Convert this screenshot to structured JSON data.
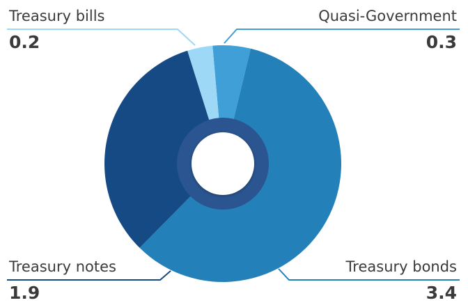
{
  "chart_data": {
    "type": "donut",
    "categories": [
      "Quasi-Government",
      "Treasury bonds",
      "Treasury notes",
      "Treasury bills"
    ],
    "values": [
      0.3,
      3.4,
      1.9,
      0.2
    ],
    "colors": [
      "#3f9fd6",
      "#2380b8",
      "#154a85",
      "#9dd8f7"
    ]
  }
}
